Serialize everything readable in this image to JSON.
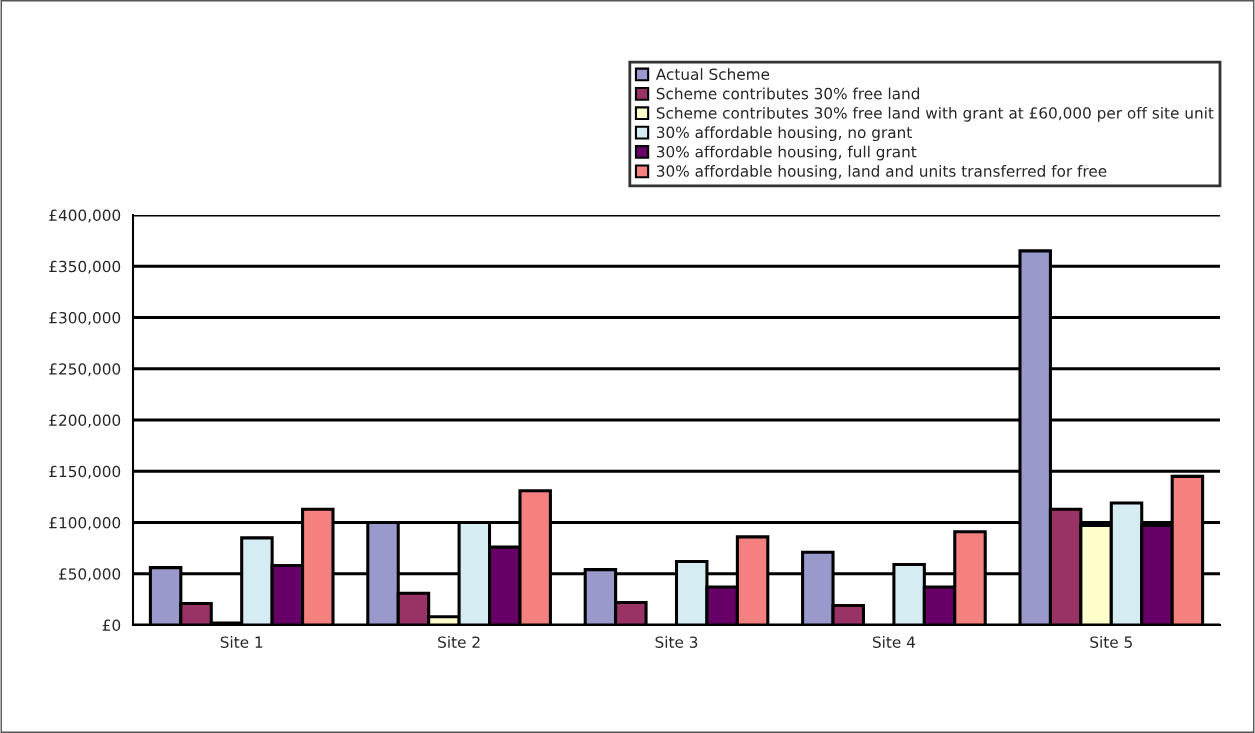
{
  "chart_data": {
    "type": "bar",
    "categories": [
      "Site 1",
      "Site 2",
      "Site 3",
      "Site 4",
      "Site 5"
    ],
    "series": [
      {
        "name": "Actual Scheme",
        "color": "#9999cc",
        "values": [
          56000,
          100000,
          54000,
          71000,
          365000
        ]
      },
      {
        "name": "Scheme contributes 30% free land",
        "color": "#993366",
        "values": [
          21000,
          31000,
          22000,
          19000,
          113000
        ]
      },
      {
        "name": "Scheme contributes 30% free land with grant at £60,000 per off site unit",
        "color": "#ffffcc",
        "values": [
          2000,
          8000,
          0,
          0,
          97000
        ]
      },
      {
        "name": "30% affordable housing, no grant",
        "color": "#d4ecf2",
        "values": [
          85000,
          100000,
          62000,
          59000,
          119000
        ]
      },
      {
        "name": "30% affordable housing, full grant",
        "color": "#660066",
        "values": [
          58000,
          76000,
          37000,
          37000,
          97000
        ]
      },
      {
        "name": "30% affordable housing, land and units transferred for free",
        "color": "#f48080",
        "values": [
          113000,
          131000,
          86000,
          91000,
          145000
        ]
      }
    ],
    "ylim": [
      0,
      400000
    ],
    "yticks": [
      {
        "value": 0,
        "label": "£0"
      },
      {
        "value": 50000,
        "label": "£50,000"
      },
      {
        "value": 100000,
        "label": "£100,000"
      },
      {
        "value": 150000,
        "label": "£150,000"
      },
      {
        "value": 200000,
        "label": "£200,000"
      },
      {
        "value": 250000,
        "label": "£250,000"
      },
      {
        "value": 300000,
        "label": "£300,000"
      },
      {
        "value": 350000,
        "label": "£350,000"
      },
      {
        "value": 400000,
        "label": "£400,000"
      }
    ],
    "grid": "y",
    "legend": "top right"
  }
}
